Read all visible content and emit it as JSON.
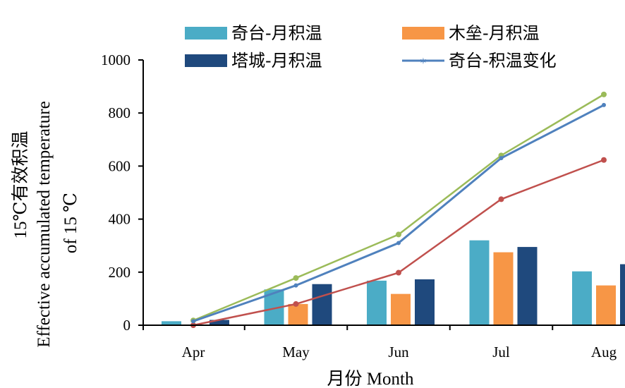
{
  "chart_data": {
    "type": "bar",
    "categories": [
      "Apr",
      "May",
      "Jun",
      "Jul",
      "Aug"
    ],
    "xlabel": "月份 Month",
    "ylabel": [
      "15℃有效积温",
      "Effective accumulated temperature",
      "of 15 ℃"
    ],
    "ylim": [
      0,
      1000
    ],
    "yticks": [
      0,
      200,
      400,
      600,
      800,
      1000
    ],
    "grid": false,
    "legend_position": "top",
    "bar_series": [
      {
        "name": "奇台-月积温",
        "color": "#4BACC6",
        "values": [
          15,
          135,
          168,
          320,
          203
        ]
      },
      {
        "name": "木垒-月积温",
        "color": "#F79646",
        "values": [
          0,
          80,
          118,
          275,
          150
        ]
      },
      {
        "name": "塔城-月积温",
        "color": "#1F497D",
        "values": [
          20,
          155,
          173,
          295,
          230
        ]
      }
    ],
    "line_series": [
      {
        "name": "奇台-积温变化",
        "color": "#4F81BD",
        "values": [
          15,
          150,
          310,
          630,
          830
        ]
      },
      {
        "color": "#9BBB59",
        "values": [
          18,
          178,
          342,
          640,
          870
        ]
      },
      {
        "color": "#C0504D",
        "values": [
          0,
          80,
          198,
          475,
          623
        ]
      }
    ]
  }
}
